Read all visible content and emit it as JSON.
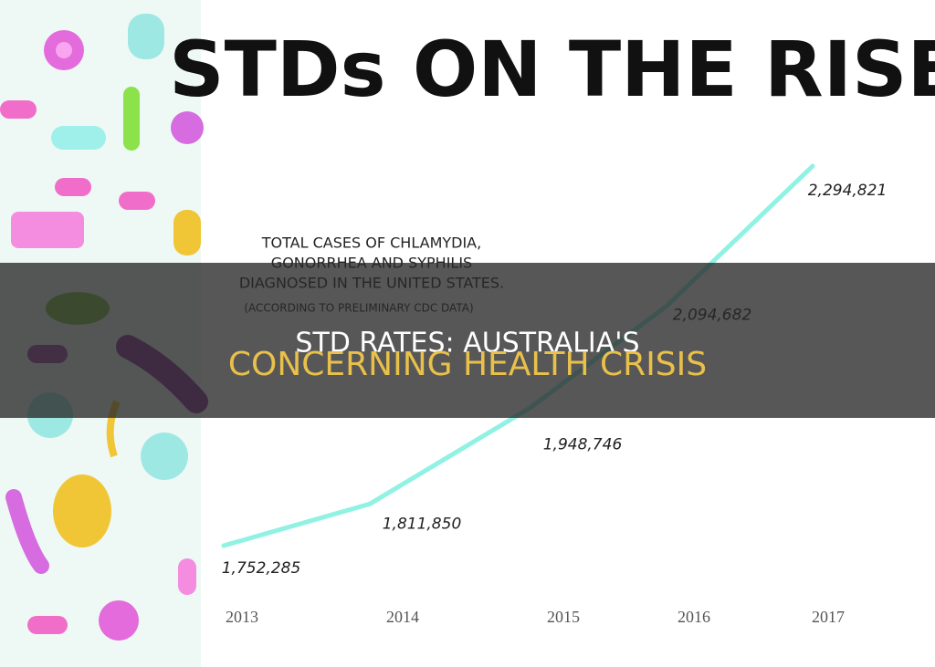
{
  "chart_data": {
    "type": "line",
    "title": "STDs ON THE RISE",
    "subtitle": [
      "TOTAL CASES OF CHLAMYDIA,",
      "GONORRHEA AND SYPHILIS",
      "DIAGNOSED IN THE UNITED STATES."
    ],
    "note": "(ACCORDING TO PRELIMINARY CDC DATA)",
    "categories": [
      "2013",
      "2014",
      "2015",
      "2016",
      "2017"
    ],
    "values": [
      1752285,
      1811850,
      1948746,
      2094682,
      2294821
    ],
    "value_labels": [
      "1,752,285",
      "1,811,850",
      "1,948,746",
      "2,094,682",
      "2,294,821"
    ],
    "color": "#8ff2e3"
  },
  "banner": {
    "line1": "STD RATES: AUSTRALIA'S",
    "line2": "CONCERNING HEALTH CRISIS"
  }
}
